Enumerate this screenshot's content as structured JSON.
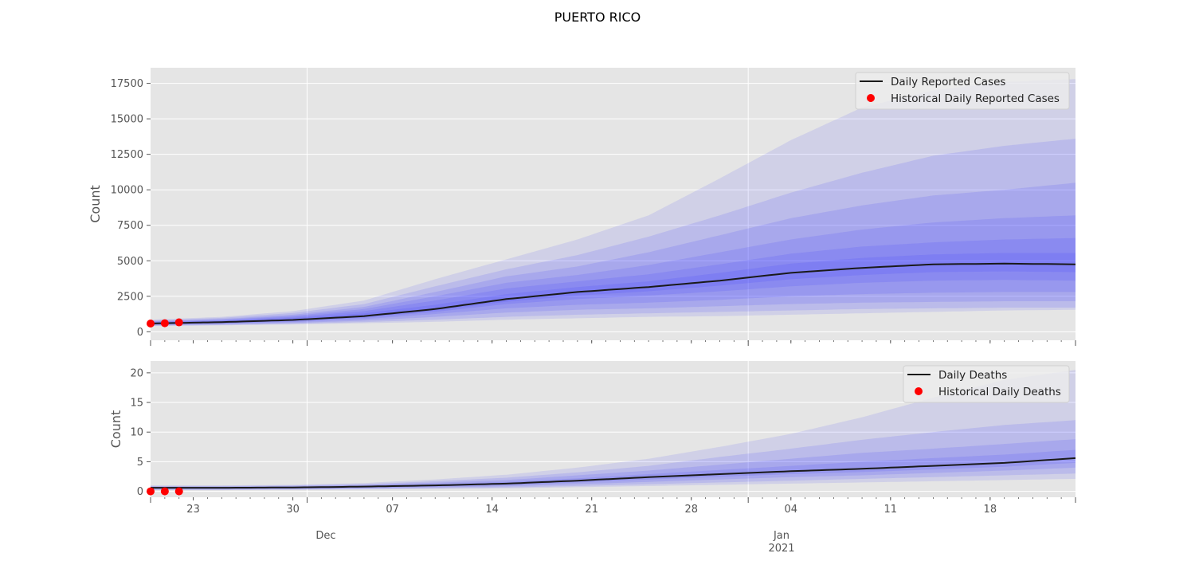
{
  "page_title": "PUERTO RICO",
  "x_axis": {
    "day_ticks": [
      "23",
      "30",
      "07",
      "14",
      "21",
      "28",
      "04",
      "11",
      "18"
    ],
    "month_labels": [
      "Dec",
      "Jan\n2021"
    ]
  },
  "chart_data": [
    {
      "type": "line",
      "title": "PUERTO RICO",
      "ylabel": "Count",
      "xlabel": "",
      "ylim": [
        -600,
        18600
      ],
      "yticks": [
        0,
        2500,
        5000,
        7500,
        10000,
        12500,
        15000,
        17500
      ],
      "ytick_labels": [
        "0",
        "2500",
        "5000",
        "7500",
        "10000",
        "12500",
        "15000",
        "17500"
      ],
      "x_domain_days": [
        0,
        65
      ],
      "legend_position": "top-right",
      "legend": [
        "Daily Reported Cases",
        "Historical Daily Reported Cases"
      ],
      "x_days": [
        0,
        5,
        10,
        15,
        20,
        25,
        30,
        35,
        40,
        45,
        50,
        55,
        60,
        65
      ],
      "series": [
        {
          "name": "Daily Reported Cases",
          "values": [
            580,
            680,
            830,
            1100,
            1600,
            2300,
            2800,
            3150,
            3600,
            4150,
            4500,
            4750,
            4800,
            4750
          ]
        }
      ],
      "bands": {
        "lower": [
          [
            400,
            450,
            520,
            600,
            700,
            850,
            950,
            1050,
            1100,
            1200,
            1300,
            1400,
            1500,
            1550
          ],
          [
            430,
            480,
            560,
            680,
            850,
            1050,
            1200,
            1300,
            1400,
            1500,
            1600,
            1650,
            1700,
            1700
          ],
          [
            460,
            520,
            620,
            780,
            1050,
            1350,
            1550,
            1650,
            1800,
            1950,
            2050,
            2100,
            2150,
            2150
          ],
          [
            490,
            560,
            690,
            890,
            1250,
            1650,
            1900,
            2050,
            2250,
            2500,
            2650,
            2750,
            2800,
            2800
          ],
          [
            520,
            600,
            750,
            990,
            1400,
            1950,
            2300,
            2550,
            2850,
            3200,
            3450,
            3600,
            3650,
            3600
          ],
          [
            550,
            640,
            790,
            1040,
            1500,
            2120,
            2550,
            2850,
            3250,
            3700,
            4000,
            4200,
            4250,
            4200
          ]
        ],
        "upper": [
          [
            850,
            1050,
            1450,
            2200,
            3700,
            5100,
            6500,
            8200,
            10800,
            13500,
            15800,
            17000,
            17600,
            17800
          ],
          [
            800,
            980,
            1320,
            1950,
            3200,
            4400,
            5400,
            6700,
            8200,
            9800,
            11200,
            12400,
            13100,
            13600
          ],
          [
            750,
            900,
            1200,
            1750,
            2800,
            3900,
            4600,
            5600,
            6800,
            8000,
            8900,
            9600,
            10000,
            10500
          ],
          [
            710,
            850,
            1120,
            1600,
            2500,
            3450,
            4000,
            4700,
            5600,
            6500,
            7200,
            7700,
            8000,
            8200
          ],
          [
            680,
            800,
            1050,
            1450,
            2200,
            3050,
            3550,
            4050,
            4750,
            5500,
            6000,
            6300,
            6500,
            6600
          ],
          [
            640,
            750,
            960,
            1300,
            1900,
            2650,
            3150,
            3550,
            4150,
            4800,
            5200,
            5450,
            5550,
            5550
          ]
        ]
      },
      "historical_points": [
        {
          "x": 0,
          "y": 580
        },
        {
          "x": 1,
          "y": 600
        },
        {
          "x": 2,
          "y": 660
        }
      ]
    },
    {
      "type": "line",
      "ylabel": "Count",
      "xlabel": "",
      "ylim": [
        -1,
        22
      ],
      "yticks": [
        0,
        5,
        10,
        15,
        20
      ],
      "ytick_labels": [
        "0",
        "5",
        "10",
        "15",
        "20"
      ],
      "x_domain_days": [
        0,
        65
      ],
      "legend_position": "top-right",
      "legend": [
        "Daily Deaths",
        "Historical Daily Deaths"
      ],
      "x_days": [
        0,
        5,
        10,
        15,
        20,
        25,
        30,
        35,
        40,
        45,
        50,
        55,
        60,
        65
      ],
      "series": [
        {
          "name": "Daily Deaths",
          "values": [
            0.6,
            0.6,
            0.65,
            0.8,
            1.0,
            1.3,
            1.8,
            2.4,
            2.9,
            3.4,
            3.8,
            4.3,
            4.8,
            5.6
          ]
        }
      ],
      "bands": {
        "lower": [
          [
            0.2,
            0.2,
            0.25,
            0.3,
            0.4,
            0.5,
            0.7,
            0.9,
            1.1,
            1.3,
            1.5,
            1.7,
            1.9,
            2.1
          ],
          [
            0.25,
            0.25,
            0.3,
            0.4,
            0.5,
            0.65,
            0.9,
            1.2,
            1.5,
            1.8,
            2.1,
            2.4,
            2.7,
            3.0
          ],
          [
            0.35,
            0.35,
            0.4,
            0.5,
            0.65,
            0.85,
            1.2,
            1.6,
            2.0,
            2.4,
            2.7,
            3.1,
            3.5,
            4.0
          ],
          [
            0.45,
            0.45,
            0.5,
            0.6,
            0.8,
            1.05,
            1.5,
            2.0,
            2.45,
            2.9,
            3.25,
            3.7,
            4.15,
            4.8
          ]
        ],
        "upper": [
          [
            1.0,
            1.0,
            1.1,
            1.4,
            2.0,
            2.8,
            4.0,
            5.5,
            7.5,
            9.7,
            12.5,
            15.8,
            18.8,
            20.5
          ],
          [
            0.9,
            0.9,
            1.0,
            1.2,
            1.7,
            2.3,
            3.2,
            4.3,
            5.8,
            7.2,
            8.7,
            10.0,
            11.2,
            12.0
          ],
          [
            0.8,
            0.8,
            0.9,
            1.1,
            1.45,
            1.9,
            2.7,
            3.5,
            4.5,
            5.5,
            6.5,
            7.2,
            8.0,
            8.8
          ],
          [
            0.7,
            0.7,
            0.75,
            0.95,
            1.2,
            1.6,
            2.2,
            2.9,
            3.6,
            4.3,
            5.0,
            5.6,
            6.2,
            7.0
          ]
        ]
      },
      "historical_points": [
        {
          "x": 0,
          "y": 0
        },
        {
          "x": 1,
          "y": 0
        },
        {
          "x": 2,
          "y": 0
        }
      ]
    }
  ],
  "colors": {
    "plot_background": "#e5e5e5",
    "grid": "#ffffff",
    "band": "#3030ff",
    "line": "#1a1a1a",
    "historical_marker": "#ff0000",
    "text": "#555555",
    "title": "#000000"
  }
}
